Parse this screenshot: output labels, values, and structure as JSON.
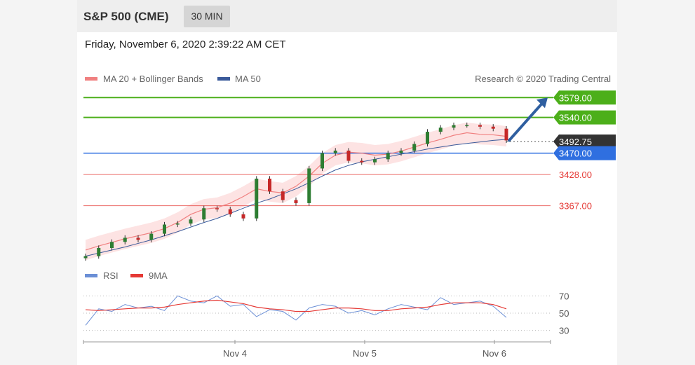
{
  "header": {
    "title": "S&P 500 (CME)",
    "interval": "30 MIN"
  },
  "datetime": "Friday, November 6, 2020 2:39:22 AM CET",
  "legend": {
    "ma20": "MA 20 + Bollinger Bands",
    "ma50": "MA 50",
    "copyright": "Research © 2020 Trading Central"
  },
  "rsi_legend": {
    "rsi": "RSI",
    "ma9": "9MA"
  },
  "colors": {
    "resistance": "#4caf1a",
    "support": "#2f6fe0",
    "pivot_red": "#e53935",
    "price_tag": "#333333",
    "ma20": "#f08080",
    "ma50": "#3a5a9a",
    "band_fill": "#fde3e3",
    "candle_up": "#2e7d32",
    "candle_down": "#c62828",
    "arrow": "#2f5fa0",
    "rsi": "#6b8fd6",
    "rsi_ma": "#e53935"
  },
  "chart_data": [
    {
      "type": "line",
      "title": "S&P 500 (CME)",
      "x_ticks": [
        "Nov 4",
        "Nov 5",
        "Nov 6"
      ],
      "ylim": [
        3262,
        3600
      ],
      "levels": [
        {
          "label": "3579.00",
          "value": 3579,
          "kind": "resistance"
        },
        {
          "label": "3540.00",
          "value": 3540,
          "kind": "resistance"
        },
        {
          "label": "3492.75",
          "value": 3492.75,
          "kind": "last-price"
        },
        {
          "label": "3470.00",
          "value": 3470,
          "kind": "support"
        },
        {
          "label": "3428.00",
          "value": 3428,
          "kind": "pivot"
        },
        {
          "label": "3367.00",
          "value": 3367,
          "kind": "pivot"
        }
      ],
      "series": [
        {
          "name": "MA 20 + Bollinger Bands",
          "values": [
            3280,
            3288,
            3295,
            3302,
            3308,
            3314,
            3322,
            3334,
            3350,
            3360,
            3363,
            3372,
            3385,
            3400,
            3395,
            3392,
            3405,
            3425,
            3450,
            3466,
            3472,
            3470,
            3466,
            3468,
            3474,
            3482,
            3490,
            3497,
            3505,
            3510,
            3507,
            3506,
            3503
          ]
        },
        {
          "name": "MA 50",
          "values": [
            3268,
            3274,
            3280,
            3286,
            3293,
            3300,
            3308,
            3316,
            3325,
            3334,
            3342,
            3352,
            3362,
            3372,
            3380,
            3390,
            3400,
            3412,
            3425,
            3437,
            3446,
            3453,
            3458,
            3463,
            3468,
            3473,
            3478,
            3482,
            3486,
            3489,
            3492,
            3495,
            3497
          ]
        },
        {
          "name": "Price",
          "values": [
            3268,
            3284,
            3296,
            3304,
            3300,
            3312,
            3330,
            3332,
            3340,
            3362,
            3360,
            3350,
            3342,
            3420,
            3395,
            3378,
            3372,
            3440,
            3470,
            3475,
            3455,
            3452,
            3458,
            3470,
            3475,
            3488,
            3512,
            3520,
            3525,
            3525,
            3522,
            3518,
            3495
          ]
        }
      ]
    },
    {
      "type": "line",
      "title": "RSI",
      "ylim": [
        20,
        80
      ],
      "y_ticks": [
        "70",
        "50",
        "30"
      ],
      "series": [
        {
          "name": "RSI",
          "values": [
            36,
            55,
            52,
            60,
            56,
            58,
            53,
            70,
            64,
            62,
            70,
            58,
            60,
            46,
            54,
            52,
            42,
            56,
            60,
            58,
            50,
            53,
            48,
            55,
            60,
            57,
            54,
            68,
            60,
            62,
            64,
            58,
            45
          ]
        },
        {
          "name": "9MA",
          "values": [
            54,
            53,
            54,
            55,
            56,
            56,
            57,
            60,
            62,
            64,
            65,
            63,
            61,
            57,
            55,
            54,
            52,
            52,
            54,
            56,
            56,
            55,
            53,
            53,
            55,
            56,
            57,
            60,
            62,
            62,
            62,
            60,
            55
          ]
        }
      ]
    }
  ]
}
